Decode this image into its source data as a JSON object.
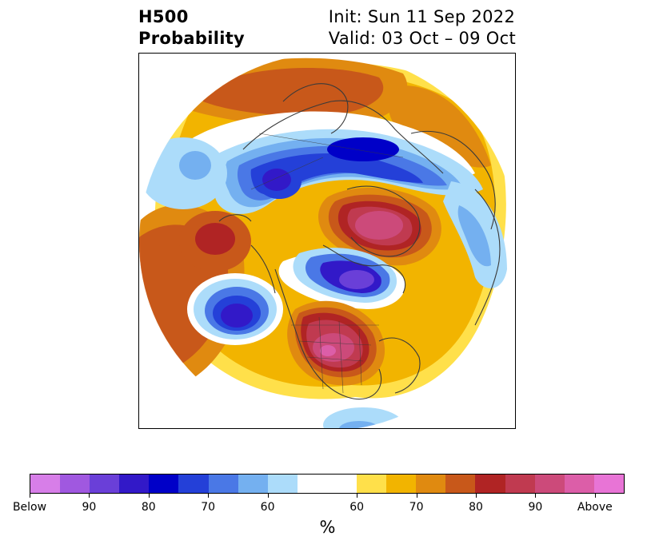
{
  "title": {
    "line1_left": "H500",
    "line2_left": "Probability",
    "line1_right": "Init: Sun 11 Sep 2022",
    "line2_right": "Valid: 03 Oct – 09 Oct"
  },
  "map": {
    "background": "#ffffff",
    "coastline_color": "#3a3a3a"
  },
  "colorbar": {
    "segments": [
      {
        "color": "#d77ee8"
      },
      {
        "color": "#a058e0"
      },
      {
        "color": "#6a3fd8"
      },
      {
        "color": "#3219c8"
      },
      {
        "color": "#0000c8"
      },
      {
        "color": "#2440d8"
      },
      {
        "color": "#4a78e6"
      },
      {
        "color": "#74b0f0"
      },
      {
        "color": "#acdcfa"
      },
      {
        "color": "#ffffff",
        "wide": true
      },
      {
        "color": "#ffe04a"
      },
      {
        "color": "#f2b400"
      },
      {
        "color": "#e08a10"
      },
      {
        "color": "#c8581a"
      },
      {
        "color": "#b02424"
      },
      {
        "color": "#c03a50"
      },
      {
        "color": "#cc4a7a"
      },
      {
        "color": "#dc5ea8"
      },
      {
        "color": "#e874d6"
      }
    ],
    "tick_labels": [
      "Below",
      "90",
      "80",
      "70",
      "60",
      "60",
      "70",
      "80",
      "90",
      "Above"
    ],
    "unit_label": "%"
  }
}
